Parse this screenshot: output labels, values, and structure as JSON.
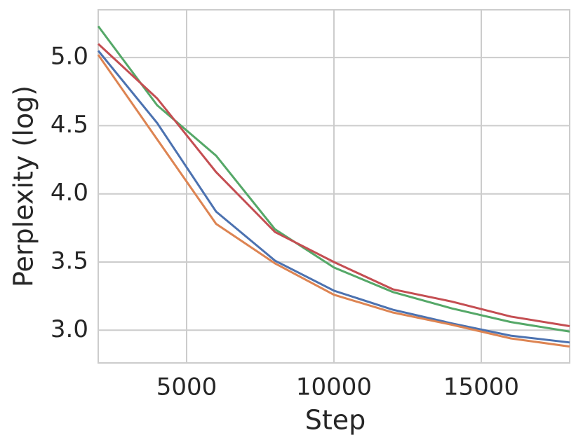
{
  "chart_data": {
    "type": "line",
    "x_label": "Step",
    "y_label": "Perplexity (log)",
    "x": [
      2000,
      4000,
      6000,
      8000,
      10000,
      12000,
      14000,
      16000,
      18000
    ],
    "series": [
      {
        "color": "#4c72b0",
        "values": [
          5.05,
          4.52,
          3.87,
          3.51,
          3.29,
          3.15,
          3.05,
          2.96,
          2.91
        ]
      },
      {
        "color": "#dd8452",
        "values": [
          5.02,
          4.4,
          3.78,
          3.49,
          3.26,
          3.13,
          3.04,
          2.94,
          2.88
        ]
      },
      {
        "color": "#55a868",
        "values": [
          5.23,
          4.65,
          4.28,
          3.74,
          3.46,
          3.28,
          3.16,
          3.06,
          2.99
        ]
      },
      {
        "color": "#c44e52",
        "values": [
          5.1,
          4.7,
          4.16,
          3.72,
          3.5,
          3.3,
          3.21,
          3.1,
          3.03
        ]
      }
    ],
    "xlim": [
      2000,
      18000
    ],
    "xticks": [
      5000,
      10000,
      15000
    ],
    "ylim": [
      2.76,
      5.35
    ],
    "yticks": [
      {
        "value": 3.0,
        "label": "3.0"
      },
      3.5,
      {
        "value": 4.0,
        "label": "4.0"
      },
      4.5,
      {
        "value": 5.0,
        "label": "5.0"
      }
    ],
    "grid": true
  }
}
